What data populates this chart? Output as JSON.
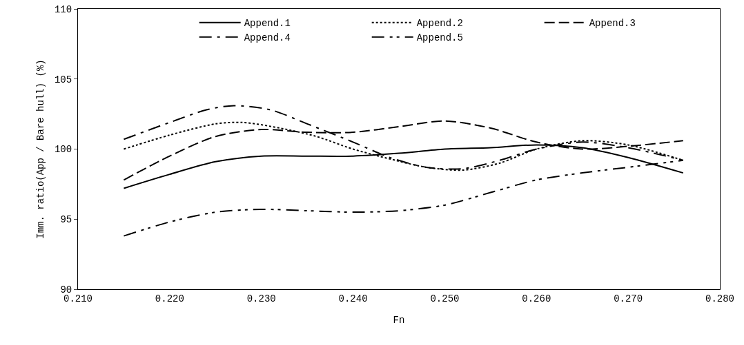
{
  "chart_data": {
    "type": "line",
    "xlabel": "Fn",
    "ylabel": "Imm. ratio(App / Bare hull) (%)",
    "xlim": [
      0.21,
      0.28
    ],
    "xticks": [
      {
        "value": 0.21,
        "label": "0.210"
      },
      {
        "value": 0.22,
        "label": "0.220"
      },
      {
        "value": 0.23,
        "label": "0.230"
      },
      {
        "value": 0.24,
        "label": "0.240"
      },
      {
        "value": 0.25,
        "label": "0.250"
      },
      {
        "value": 0.26,
        "label": "0.260"
      },
      {
        "value": 0.27,
        "label": "0.270"
      },
      {
        "value": 0.28,
        "label": "0.280"
      }
    ],
    "ylim": [
      90,
      110
    ],
    "yticks": [
      90,
      95,
      100,
      105,
      110
    ],
    "grid": false,
    "legend": "top right",
    "marker": "none",
    "series": [
      {
        "name": "Append.1",
        "color": "#000000",
        "line_style": "solid",
        "x": [
          0.215,
          0.22,
          0.225,
          0.23,
          0.235,
          0.24,
          0.245,
          0.25,
          0.255,
          0.26,
          0.265,
          0.27,
          0.276
        ],
        "values": [
          97.2,
          98.2,
          99.1,
          99.5,
          99.5,
          99.5,
          99.7,
          100.0,
          100.1,
          100.3,
          100.1,
          99.4,
          98.3
        ]
      },
      {
        "name": "Append.2",
        "color": "#000000",
        "line_style": "dotted",
        "x": [
          0.215,
          0.22,
          0.225,
          0.228,
          0.232,
          0.236,
          0.24,
          0.244,
          0.248,
          0.252,
          0.256,
          0.26,
          0.265,
          0.27,
          0.276
        ],
        "values": [
          100.0,
          101.0,
          101.8,
          101.9,
          101.5,
          100.9,
          100.0,
          99.3,
          98.7,
          98.5,
          99.0,
          100.0,
          100.6,
          100.3,
          99.2
        ]
      },
      {
        "name": "Append.3",
        "color": "#000000",
        "line_style": "dashed",
        "x": [
          0.215,
          0.22,
          0.225,
          0.23,
          0.235,
          0.24,
          0.245,
          0.25,
          0.255,
          0.26,
          0.265,
          0.27,
          0.276
        ],
        "values": [
          97.8,
          99.5,
          100.9,
          101.4,
          101.2,
          101.2,
          101.6,
          102.0,
          101.5,
          100.5,
          100.0,
          100.2,
          100.6
        ]
      },
      {
        "name": "Append.4",
        "color": "#000000",
        "line_style": "dashdot",
        "x": [
          0.215,
          0.22,
          0.224,
          0.227,
          0.231,
          0.235,
          0.24,
          0.244,
          0.248,
          0.252,
          0.256,
          0.26,
          0.265,
          0.27,
          0.276
        ],
        "values": [
          100.7,
          101.9,
          102.8,
          103.1,
          102.8,
          101.8,
          100.5,
          99.4,
          98.7,
          98.6,
          99.2,
          100.0,
          100.5,
          100.1,
          99.2
        ]
      },
      {
        "name": "Append.5",
        "color": "#000000",
        "line_style": "dashdotdot",
        "x": [
          0.215,
          0.22,
          0.225,
          0.23,
          0.235,
          0.24,
          0.245,
          0.25,
          0.255,
          0.26,
          0.265,
          0.27,
          0.276
        ],
        "values": [
          93.8,
          94.8,
          95.5,
          95.7,
          95.6,
          95.5,
          95.6,
          96.0,
          96.9,
          97.8,
          98.3,
          98.7,
          99.2
        ]
      }
    ]
  }
}
